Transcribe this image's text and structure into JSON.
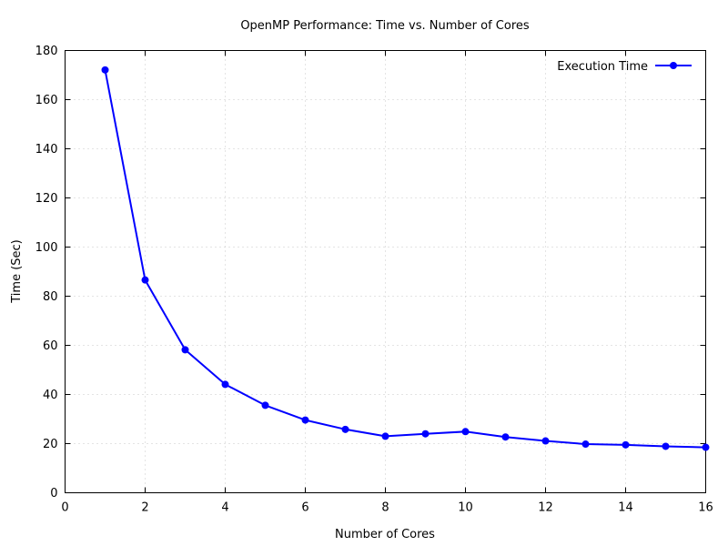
{
  "chart_data": {
    "type": "line",
    "title": "OpenMP Performance: Time vs. Number of Cores",
    "xlabel": "Number of Cores",
    "ylabel": "Time (Sec)",
    "xlim": [
      0,
      16
    ],
    "ylim": [
      0,
      180
    ],
    "xticks": [
      0,
      2,
      4,
      6,
      8,
      10,
      12,
      14,
      16
    ],
    "yticks": [
      0,
      20,
      40,
      60,
      80,
      100,
      120,
      140,
      160,
      180
    ],
    "grid": true,
    "legend": "top-right",
    "series": [
      {
        "name": "Execution Time",
        "color": "#0000ff",
        "marker": "circle",
        "x": [
          1,
          2,
          3,
          4,
          5,
          6,
          7,
          8,
          9,
          10,
          11,
          12,
          13,
          14,
          15,
          16
        ],
        "y": [
          172.1,
          86.6,
          58.2,
          44.1,
          35.6,
          29.6,
          25.8,
          23.0,
          24.0,
          24.9,
          22.7,
          21.1,
          19.8,
          19.5,
          18.9,
          18.5
        ]
      }
    ]
  }
}
